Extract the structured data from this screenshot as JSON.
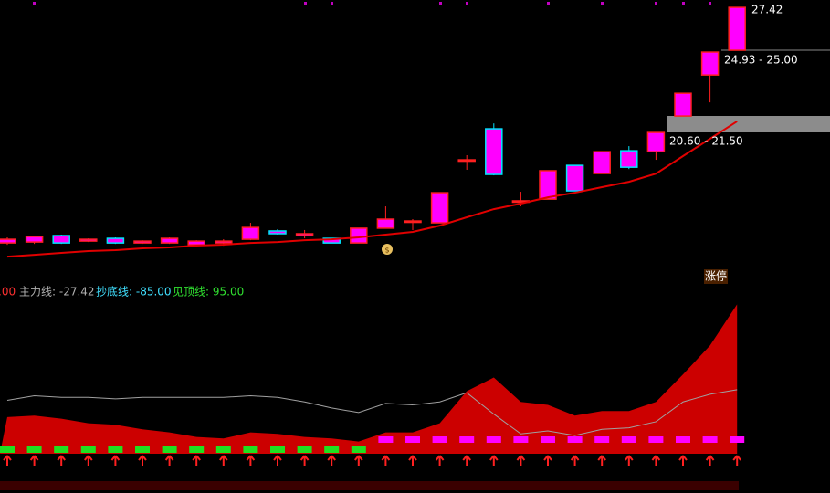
{
  "chart_data": [
    {
      "type": "candlestick",
      "ylim": [
        13.49,
        27.82
      ],
      "open": [
        14.67,
        14.72,
        15.07,
        14.77,
        14.92,
        14.67,
        14.67,
        14.57,
        14.67,
        14.87,
        15.32,
        15.07,
        14.92,
        14.67,
        15.47,
        15.86,
        15.76,
        19.17,
        20.85,
        16.95,
        17.04,
        18.87,
        18.43,
        19.66,
        19.61,
        21.54,
        23.76,
        25.1
      ],
      "high": [
        14.97,
        15.07,
        15.12,
        14.92,
        14.97,
        14.82,
        14.97,
        14.82,
        14.87,
        15.76,
        15.42,
        15.37,
        14.92,
        15.47,
        16.65,
        15.96,
        17.39,
        19.42,
        21.14,
        17.44,
        18.58,
        18.87,
        19.61,
        19.91,
        20.65,
        22.77,
        25.0,
        27.42
      ],
      "low": [
        14.57,
        14.62,
        14.62,
        14.72,
        14.62,
        14.62,
        14.62,
        14.52,
        14.52,
        14.82,
        15.12,
        14.92,
        14.67,
        14.67,
        15.47,
        15.37,
        15.76,
        18.63,
        18.33,
        16.65,
        17.04,
        17.49,
        18.43,
        18.67,
        19.17,
        21.54,
        22.28,
        25.1
      ],
      "close": [
        14.87,
        15.02,
        14.67,
        14.87,
        14.67,
        14.77,
        14.92,
        14.77,
        14.77,
        15.51,
        15.17,
        15.17,
        14.67,
        15.47,
        15.96,
        15.86,
        17.39,
        19.17,
        18.38,
        16.95,
        18.58,
        17.49,
        19.61,
        18.77,
        20.65,
        22.77,
        25.0,
        27.42
      ],
      "ma": [
        13.93,
        14.03,
        14.13,
        14.23,
        14.28,
        14.38,
        14.43,
        14.53,
        14.58,
        14.67,
        14.72,
        14.82,
        14.87,
        14.97,
        15.12,
        15.27,
        15.61,
        16.06,
        16.5,
        16.8,
        17.14,
        17.39,
        17.69,
        17.98,
        18.42,
        19.37,
        20.31,
        21.25
      ],
      "up_color": "#ff00ff",
      "edge_up": "#ff2020",
      "down_edge": "#00e5ff",
      "ma_color": "#e00000",
      "annotations": [
        "27.42",
        "24.93 - 25.00",
        "20.60 - 21.50",
        "涨停"
      ]
    },
    {
      "type": "area",
      "legend": [
        ".00",
        "主力线: -27.42",
        "抄底线: -85.00",
        "见顶线: 95.00"
      ],
      "ylim": [
        0,
        100
      ],
      "series": [
        {
          "color": "#cc0000",
          "values": [
            24,
            25,
            23,
            20,
            19,
            16,
            14,
            11,
            10,
            14,
            13,
            11,
            10,
            8,
            14,
            14,
            20,
            41,
            50,
            34,
            32,
            25,
            28,
            28,
            34,
            52,
            71,
            98
          ]
        },
        {
          "color": "#a0a0a0",
          "values": [
            35,
            38,
            37,
            37,
            36,
            37,
            37,
            37,
            37,
            38,
            37,
            34,
            30,
            27,
            33,
            32,
            34,
            40,
            26,
            13,
            15,
            12,
            16,
            17,
            21,
            34,
            39,
            42
          ]
        }
      ]
    }
  ]
}
